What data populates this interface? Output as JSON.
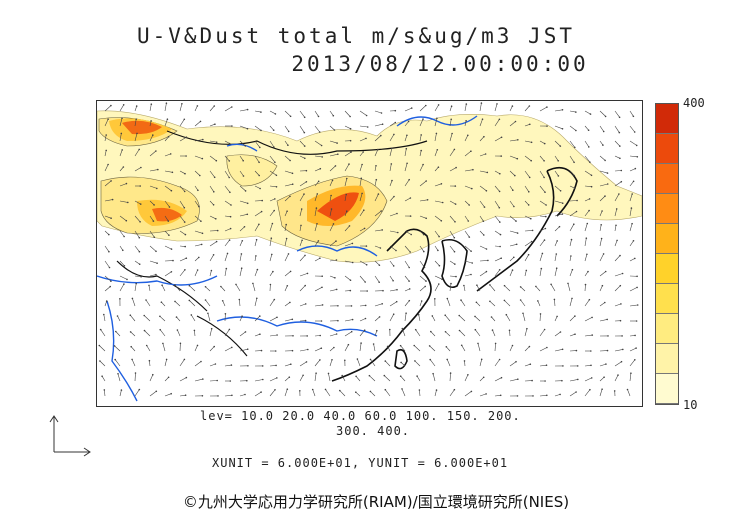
{
  "header": {
    "title_line1": "U-V&Dust total m/s&ug/m3 JST",
    "title_line2": "2013/08/12.00:00:00"
  },
  "colorbar": {
    "max_label": "400",
    "min_label": "10",
    "colors": [
      "#fffbd0",
      "#fff3a8",
      "#ffec80",
      "#ffe04d",
      "#ffd22a",
      "#ffb21a",
      "#ff8c14",
      "#f96a10",
      "#ec4a0c",
      "#d12a08"
    ]
  },
  "levels": {
    "line1": "lev= 10.0 20.0 40.0 60.0 100. 150. 200.",
    "line2": "300. 400."
  },
  "units": {
    "text": "XUNIT = 6.000E+01, YUNIT = 6.000E+01"
  },
  "credit": {
    "text": "©九州大学応用力学研究所(RIAM)/国立環境研究所(NIES)"
  },
  "palette": {
    "coast": "#111111",
    "river": "#1f5fe0",
    "border": "#333333",
    "arrow": "#444444"
  }
}
